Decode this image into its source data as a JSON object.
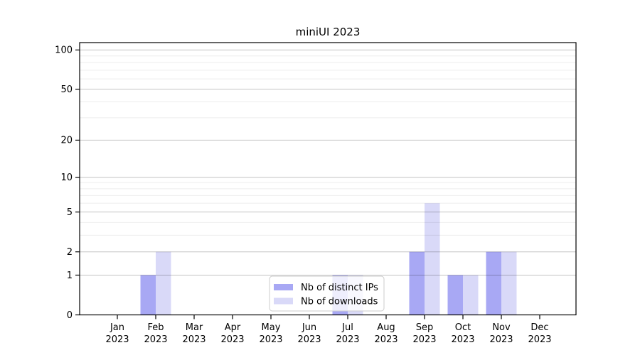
{
  "figure": {
    "title": "miniUI 2023"
  },
  "chart_data": {
    "type": "bar",
    "title": "miniUI 2023",
    "categories": [
      "Jan",
      "Feb",
      "Mar",
      "Apr",
      "May",
      "Jun",
      "Jul",
      "Aug",
      "Sep",
      "Oct",
      "Nov",
      "Dec"
    ],
    "year": "2023",
    "series": [
      {
        "name": "Nb of distinct IPs",
        "color": "#a8a8f4",
        "values": [
          0,
          1,
          0,
          0,
          0,
          0,
          1,
          0,
          2,
          1,
          2,
          0
        ]
      },
      {
        "name": "Nb of downloads",
        "color": "#d9d9f8",
        "values": [
          0,
          2,
          0,
          0,
          0,
          0,
          1,
          0,
          6,
          1,
          2,
          0
        ]
      }
    ],
    "xlabel": "",
    "ylabel": "",
    "y_scale": "log1p",
    "y_ticks": [
      0,
      1,
      2,
      5,
      10,
      20,
      50,
      100
    ],
    "y_minor_grid": [
      3,
      4,
      6,
      7,
      8,
      9,
      30,
      40,
      60,
      70,
      80,
      90
    ],
    "ylim": [
      0,
      114
    ],
    "grid": true,
    "legend_position": "lower center inside"
  },
  "colors": {
    "axis": "#000000",
    "grid_major": "#bdbdbd",
    "grid_minor": "#eeeeee",
    "background": "#ffffff",
    "legend_border": "#cccccc",
    "legend_fill": "#ffffff"
  }
}
